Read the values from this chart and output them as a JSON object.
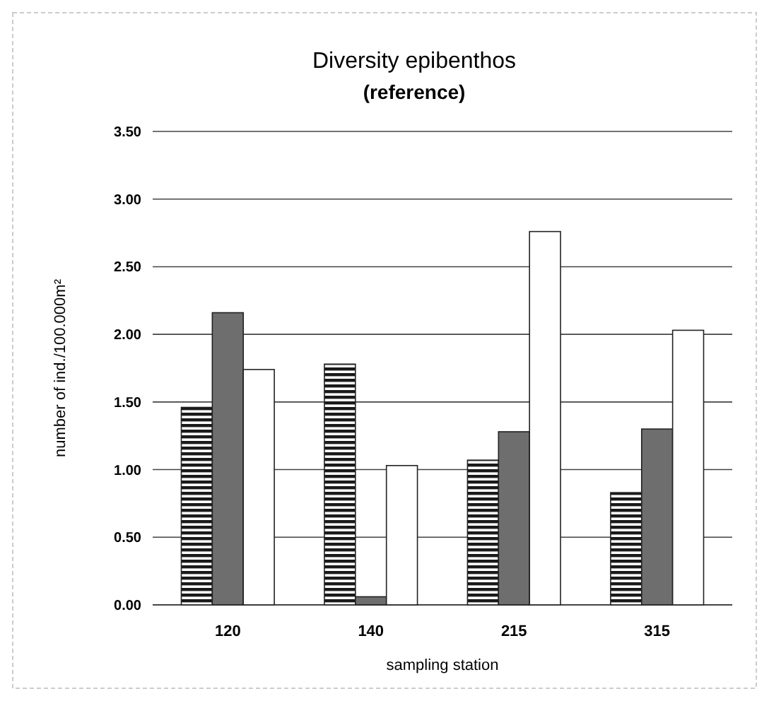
{
  "chart_data": {
    "type": "bar",
    "title": "Diversity epibenthos",
    "subtitle": "(reference)",
    "xlabel": "sampling station",
    "ylabel": "number of ind./100.000m²",
    "categories": [
      "120",
      "140",
      "215",
      "315"
    ],
    "series": [
      {
        "color": "#1a1a1a",
        "values": [
          1.46,
          1.78,
          1.07,
          0.83
        ]
      },
      {
        "color": "#6e6e6e",
        "values": [
          2.16,
          0.06,
          1.28,
          1.3
        ]
      },
      {
        "color": "#ffffff",
        "values": [
          1.74,
          1.03,
          2.76,
          2.03
        ]
      }
    ],
    "ylim": [
      0,
      3.5
    ],
    "yticks": [
      {
        "value": 0,
        "label": "0.00"
      },
      {
        "value": 0.5,
        "label": "0.50"
      },
      {
        "value": 1,
        "label": "1.00"
      },
      {
        "value": 1.5,
        "label": "1.50"
      },
      {
        "value": 2,
        "label": "2.00"
      },
      {
        "value": 2.5,
        "label": "2.50"
      },
      {
        "value": 3,
        "label": "3.00"
      },
      {
        "value": 3.5,
        "label": "3.50"
      }
    ],
    "grid": "y"
  }
}
